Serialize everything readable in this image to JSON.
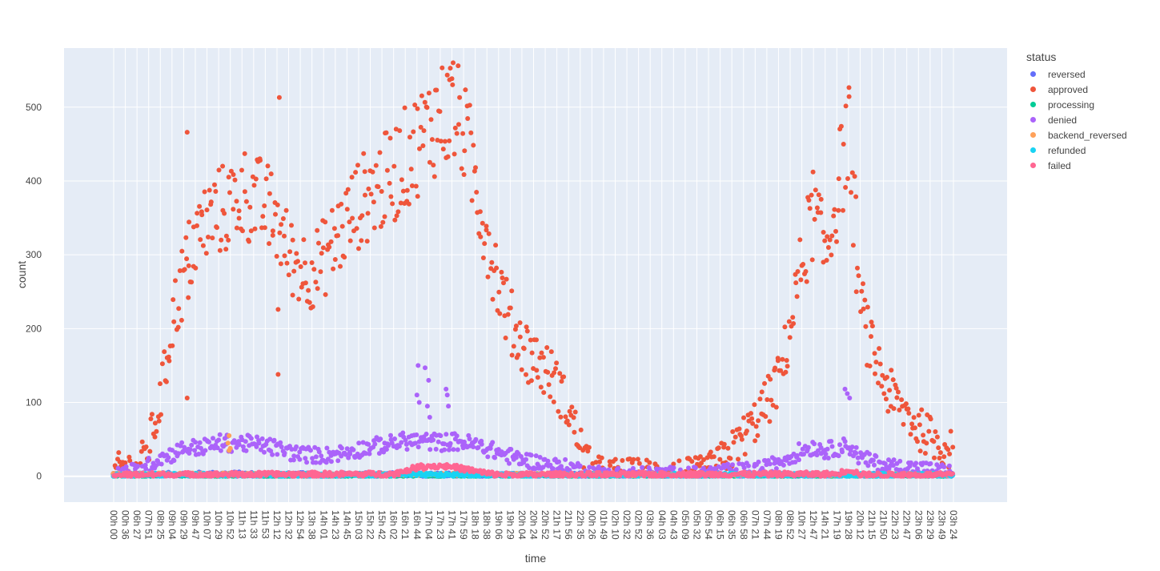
{
  "chart_data": {
    "type": "scatter",
    "title": "",
    "xlabel": "time",
    "ylabel": "count",
    "ylim": [
      -35,
      580
    ],
    "yticks": [
      0,
      100,
      200,
      300,
      400,
      500
    ],
    "grid": true,
    "legend_position": "right",
    "legend_title": "status",
    "x_tick_labels": [
      "00h 00",
      "00h 36",
      "06h 27",
      "07h 51",
      "08h 25",
      "09h 04",
      "09h 29",
      "09h 47",
      "10h 07",
      "10h 29",
      "10h 52",
      "11h 13",
      "11h 33",
      "11h 53",
      "12h 12",
      "12h 32",
      "12h 54",
      "13h 38",
      "14h 01",
      "14h 23",
      "14h 45",
      "15h 03",
      "15h 22",
      "15h 42",
      "16h 02",
      "16h 21",
      "16h 44",
      "17h 04",
      "17h 23",
      "17h 41",
      "17h 59",
      "18h 18",
      "18h 38",
      "19h 06",
      "19h 29",
      "20h 04",
      "20h 24",
      "20h 52",
      "21h 17",
      "21h 56",
      "22h 35",
      "00h 26",
      "01h 49",
      "02h 10",
      "02h 32",
      "02h 52",
      "03h 36",
      "04h 03",
      "04h 43",
      "05h 09",
      "05h 32",
      "05h 54",
      "06h 15",
      "06h 35",
      "06h 58",
      "07h 21",
      "07h 44",
      "08h 19",
      "08h 52",
      "10h 27",
      "12h 47",
      "14h 21",
      "17h 19",
      "19h 28",
      "20h 12",
      "21h 15",
      "21h 50",
      "22h 23",
      "22h 47",
      "23h 06",
      "23h 29",
      "23h 49",
      "03h 24"
    ],
    "x_range_index": [
      0,
      72
    ],
    "series": [
      {
        "name": "reversed",
        "color": "#636efa",
        "anchors": [
          [
            0,
            3
          ],
          [
            1,
            2
          ],
          [
            10,
            3
          ],
          [
            14,
            2
          ],
          [
            20,
            2
          ],
          [
            27,
            2
          ],
          [
            35,
            1
          ],
          [
            40,
            2
          ],
          [
            50,
            1
          ],
          [
            60,
            1
          ],
          [
            70,
            1
          ],
          [
            72,
            1
          ]
        ],
        "noise": 2
      },
      {
        "name": "approved",
        "color": "#ef553b",
        "anchors": [
          [
            0,
            5
          ],
          [
            1,
            15
          ],
          [
            2,
            5
          ],
          [
            3,
            40
          ],
          [
            4,
            100
          ],
          [
            5,
            210
          ],
          [
            6,
            270
          ],
          [
            7,
            320
          ],
          [
            8,
            345
          ],
          [
            9,
            360
          ],
          [
            10,
            365
          ],
          [
            11,
            385
          ],
          [
            12,
            375
          ],
          [
            13,
            365
          ],
          [
            14,
            345
          ],
          [
            15,
            300
          ],
          [
            16,
            285
          ],
          [
            17,
            280
          ],
          [
            18,
            295
          ],
          [
            19,
            320
          ],
          [
            20,
            345
          ],
          [
            21,
            370
          ],
          [
            22,
            385
          ],
          [
            23,
            395
          ],
          [
            24,
            410
          ],
          [
            25,
            430
          ],
          [
            26,
            450
          ],
          [
            27,
            470
          ],
          [
            28,
            490
          ],
          [
            29,
            495
          ],
          [
            30,
            470
          ],
          [
            31,
            400
          ],
          [
            32,
            330
          ],
          [
            33,
            260
          ],
          [
            34,
            210
          ],
          [
            35,
            180
          ],
          [
            36,
            160
          ],
          [
            37,
            145
          ],
          [
            38,
            125
          ],
          [
            39,
            90
          ],
          [
            40,
            45
          ],
          [
            41,
            8
          ],
          [
            42,
            3
          ],
          [
            44,
            2
          ],
          [
            48,
            2
          ],
          [
            50,
            3
          ],
          [
            51,
            8
          ],
          [
            52,
            20
          ],
          [
            53,
            35
          ],
          [
            54,
            55
          ],
          [
            55,
            75
          ],
          [
            56,
            100
          ],
          [
            57,
            130
          ],
          [
            58,
            200
          ],
          [
            59,
            290
          ],
          [
            60,
            360
          ],
          [
            61,
            300
          ],
          [
            62,
            380
          ],
          [
            63,
            470
          ],
          [
            64,
            230
          ],
          [
            65,
            170
          ],
          [
            66,
            130
          ],
          [
            67,
            100
          ],
          [
            68,
            85
          ],
          [
            69,
            65
          ],
          [
            70,
            55
          ],
          [
            71,
            40
          ],
          [
            72,
            35
          ]
        ],
        "noise": 14,
        "outliers": [
          [
            6.3,
            466
          ],
          [
            6.3,
            106
          ],
          [
            6.4,
            242
          ],
          [
            14.2,
            513
          ],
          [
            14.1,
            226
          ],
          [
            14.1,
            138
          ],
          [
            29.1,
            560
          ],
          [
            28.8,
            537
          ]
        ]
      },
      {
        "name": "processing",
        "color": "#00cc96",
        "anchors": [
          [
            0,
            1
          ],
          [
            72,
            1
          ]
        ],
        "noise": 1
      },
      {
        "name": "denied",
        "color": "#ab63fa",
        "anchors": [
          [
            0,
            5
          ],
          [
            2,
            8
          ],
          [
            3,
            15
          ],
          [
            4,
            25
          ],
          [
            5,
            30
          ],
          [
            6,
            38
          ],
          [
            8,
            40
          ],
          [
            9,
            45
          ],
          [
            11,
            45
          ],
          [
            12,
            43
          ],
          [
            13,
            42
          ],
          [
            14,
            38
          ],
          [
            15,
            33
          ],
          [
            16,
            30
          ],
          [
            18,
            28
          ],
          [
            20,
            33
          ],
          [
            22,
            40
          ],
          [
            24,
            45
          ],
          [
            25,
            48
          ],
          [
            27,
            47
          ],
          [
            28,
            46
          ],
          [
            29,
            47
          ],
          [
            30,
            46
          ],
          [
            31,
            42
          ],
          [
            32,
            38
          ],
          [
            33,
            32
          ],
          [
            34,
            27
          ],
          [
            35,
            23
          ],
          [
            36,
            20
          ],
          [
            37,
            17
          ],
          [
            38,
            14
          ],
          [
            39,
            12
          ],
          [
            40,
            9
          ],
          [
            41,
            5
          ],
          [
            43,
            3
          ],
          [
            50,
            3
          ],
          [
            52,
            6
          ],
          [
            54,
            8
          ],
          [
            56,
            12
          ],
          [
            57,
            20
          ],
          [
            58,
            27
          ],
          [
            59,
            35
          ],
          [
            60,
            40
          ],
          [
            61,
            35
          ],
          [
            62,
            38
          ],
          [
            63,
            42
          ],
          [
            64,
            25
          ],
          [
            65,
            20
          ],
          [
            66,
            16
          ],
          [
            67,
            13
          ],
          [
            68,
            12
          ],
          [
            69,
            11
          ],
          [
            70,
            9
          ],
          [
            71,
            7
          ],
          [
            72,
            5
          ]
        ],
        "noise": 6,
        "outliers": [
          [
            26.1,
            150
          ],
          [
            26.0,
            110
          ],
          [
            26.2,
            100
          ],
          [
            26.7,
            147
          ],
          [
            27.0,
            130
          ],
          [
            26.9,
            95
          ],
          [
            27.1,
            80
          ],
          [
            28.5,
            118
          ],
          [
            28.6,
            110
          ],
          [
            28.7,
            95
          ],
          [
            62.7,
            118
          ],
          [
            62.9,
            112
          ],
          [
            63.1,
            106
          ]
        ]
      },
      {
        "name": "backend_reversed",
        "color": "#ffa15a",
        "anchors": [
          [
            0,
            3
          ],
          [
            72,
            2
          ]
        ],
        "noise": 1,
        "outliers": [
          [
            9.9,
            55
          ],
          [
            9.8,
            45
          ],
          [
            10.0,
            38
          ],
          [
            9.9,
            35
          ]
        ]
      },
      {
        "name": "refunded",
        "color": "#19d3f3",
        "anchors": [
          [
            0,
            2
          ],
          [
            72,
            2
          ]
        ],
        "noise": 1.5
      },
      {
        "name": "failed",
        "color": "#ff6692",
        "anchors": [
          [
            0,
            2
          ],
          [
            24,
            3
          ],
          [
            25,
            8
          ],
          [
            26,
            12
          ],
          [
            27,
            14
          ],
          [
            28,
            14
          ],
          [
            29,
            13
          ],
          [
            30,
            10
          ],
          [
            31,
            7
          ],
          [
            32,
            4
          ],
          [
            33,
            2
          ],
          [
            62,
            3
          ],
          [
            63,
            9
          ],
          [
            63.6,
            6
          ],
          [
            64,
            2
          ],
          [
            72,
            2
          ]
        ],
        "noise": 2
      }
    ]
  }
}
